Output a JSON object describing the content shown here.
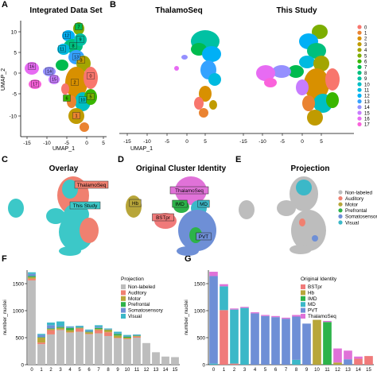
{
  "panels": {
    "A": {
      "label": "A",
      "title": "Integrated Data Set",
      "xlabel": "UMAP_1",
      "ylabel": "UMAP_2",
      "xticks": [
        "-15",
        "-10",
        "-5",
        "0",
        "5"
      ],
      "yticks": [
        "10",
        "5",
        "0",
        "-5",
        "-10"
      ]
    },
    "B": {
      "label": "B",
      "title_left": "ThalamoSeq",
      "title_right": "This Study",
      "xlabel": "UMAP_1",
      "xticks": [
        "-15",
        "-10",
        "-5",
        "0",
        "5"
      ]
    },
    "C": {
      "label": "C",
      "title": "Overlay"
    },
    "D": {
      "label": "D",
      "title": "Original Cluster Identity"
    },
    "E": {
      "label": "E",
      "title": "Projection"
    },
    "F": {
      "label": "F"
    },
    "G": {
      "label": "G"
    }
  },
  "cluster_legend": [
    "0",
    "1",
    "2",
    "3",
    "4",
    "5",
    "6",
    "7",
    "8",
    "9",
    "10",
    "11",
    "12",
    "13",
    "14",
    "15",
    "16",
    "17"
  ],
  "cluster_colors": [
    "#f8766d",
    "#ea8331",
    "#d89000",
    "#c09b00",
    "#a3a500",
    "#7cae00",
    "#39b600",
    "#00bb4e",
    "#00bf7d",
    "#00c1a3",
    "#00bfc4",
    "#00bae0",
    "#00b0f6",
    "#35a2ff",
    "#9590ff",
    "#c77cff",
    "#e76bf3",
    "#fa62db"
  ],
  "umap_cluster_labels_A": [
    "7",
    "12",
    "8",
    "9",
    "11",
    "16",
    "15",
    "14",
    "17",
    "3",
    "10",
    "0",
    "13",
    "2",
    "5",
    "6",
    "1"
  ],
  "overlay_labels": [
    "ThalamoSeq",
    "This Study"
  ],
  "overlay_colors": {
    "thalamoseq": "#f08070",
    "this_study": "#3cc8c8"
  },
  "identity_labels": [
    "ThalamoSeq",
    "IMD",
    "MD",
    "Hb",
    "BSTpr",
    "PVT"
  ],
  "identity_colors": {
    "BSTpr": "#f07a7a",
    "Hb": "#b8a63a",
    "IMD": "#2db34a",
    "MD": "#3bb8c8",
    "PVT": "#6e8fd6",
    "ThalamoSeq": "#e072d8"
  },
  "projection_legend": [
    "Non-labeled",
    "Auditory",
    "Motor",
    "Prefrontal",
    "Somatosensory",
    "Visual"
  ],
  "projection_colors": {
    "Non-labeled": "#bdbdbd",
    "Auditory": "#f08070",
    "Motor": "#b8a63a",
    "Prefrontal": "#2db34a",
    "Somatosensory": "#6e8fd6",
    "Visual": "#3bb8c8"
  },
  "chart_data": [
    {
      "panel": "F",
      "type": "bar",
      "stacked": true,
      "xlabel": "",
      "ylabel": "number_nuclei",
      "ylim": [
        0,
        1750
      ],
      "yticks": [
        0,
        500,
        1000,
        1500
      ],
      "legend_title": "Projection",
      "legend_position": "top-right",
      "categories": [
        "0",
        "1",
        "2",
        "3",
        "4",
        "5",
        "6",
        "7",
        "8",
        "9",
        "10",
        "11",
        "12",
        "13",
        "14",
        "15"
      ],
      "series": [
        {
          "name": "Non-labeled",
          "color": "#bdbdbd",
          "values": [
            1560,
            380,
            560,
            640,
            590,
            610,
            560,
            580,
            530,
            490,
            470,
            500,
            400,
            230,
            150,
            140
          ]
        },
        {
          "name": "Auditory",
          "color": "#f08070",
          "values": [
            30,
            30,
            80,
            10,
            10,
            60,
            10,
            60,
            70,
            10,
            10,
            20,
            0,
            0,
            0,
            0
          ]
        },
        {
          "name": "Motor",
          "color": "#b8a63a",
          "values": [
            30,
            90,
            20,
            30,
            40,
            10,
            30,
            20,
            40,
            40,
            20,
            10,
            0,
            0,
            0,
            0
          ]
        },
        {
          "name": "Prefrontal",
          "color": "#2db34a",
          "values": [
            20,
            10,
            10,
            20,
            40,
            10,
            10,
            20,
            10,
            30,
            20,
            10,
            0,
            0,
            0,
            0
          ]
        },
        {
          "name": "Somatosensory",
          "color": "#6e8fd6",
          "values": [
            40,
            40,
            60,
            20,
            20,
            10,
            20,
            20,
            10,
            10,
            10,
            10,
            0,
            0,
            0,
            0
          ]
        },
        {
          "name": "Visual",
          "color": "#3bb8c8",
          "values": [
            30,
            20,
            50,
            80,
            10,
            20,
            20,
            30,
            10,
            30,
            20,
            10,
            0,
            0,
            0,
            0
          ]
        }
      ]
    },
    {
      "panel": "G",
      "type": "bar",
      "stacked": true,
      "xlabel": "",
      "ylabel": "number_nuclei",
      "ylim": [
        0,
        1750
      ],
      "yticks": [
        0,
        500,
        1000,
        1500
      ],
      "legend_title": "Original Identity",
      "legend_position": "top-right",
      "categories": [
        "0",
        "1",
        "2",
        "3",
        "4",
        "5",
        "6",
        "7",
        "8",
        "9",
        "10",
        "11",
        "12",
        "13",
        "14",
        "15"
      ],
      "series": [
        {
          "name": "BSTpr",
          "color": "#f07a7a",
          "values": [
            0,
            1010,
            20,
            0,
            0,
            0,
            0,
            0,
            0,
            0,
            0,
            0,
            0,
            0,
            110,
            160
          ]
        },
        {
          "name": "Hb",
          "color": "#b8a63a",
          "values": [
            0,
            0,
            0,
            0,
            0,
            0,
            0,
            0,
            0,
            0,
            830,
            0,
            40,
            0,
            0,
            0
          ]
        },
        {
          "name": "IMD",
          "color": "#2db34a",
          "values": [
            0,
            0,
            0,
            0,
            0,
            0,
            0,
            0,
            0,
            0,
            0,
            790,
            0,
            0,
            0,
            0
          ]
        },
        {
          "name": "MD",
          "color": "#3bb8c8",
          "values": [
            20,
            440,
            1000,
            1050,
            0,
            0,
            0,
            0,
            90,
            0,
            0,
            0,
            0,
            0,
            0,
            0
          ]
        },
        {
          "name": "PVT",
          "color": "#6e8fd6",
          "values": [
            1620,
            0,
            0,
            0,
            950,
            900,
            880,
            850,
            800,
            760,
            0,
            0,
            0,
            100,
            0,
            0
          ]
        },
        {
          "name": "ThalamoSeq",
          "color": "#e072d8",
          "values": [
            80,
            40,
            20,
            20,
            20,
            20,
            20,
            20,
            30,
            0,
            0,
            20,
            260,
            160,
            40,
            0
          ]
        }
      ]
    }
  ]
}
